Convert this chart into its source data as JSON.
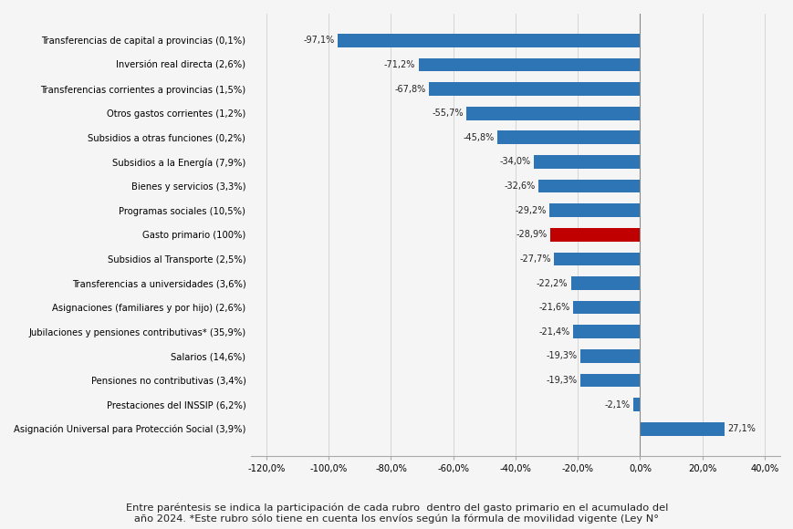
{
  "categories": [
    "Transferencias de capital a provincias (0,1%)",
    "Inversión real directa (2,6%)",
    "Transferencias corrientes a provincias (1,5%)",
    "Otros gastos corrientes (1,2%)",
    "Subsidios a otras funciones (0,2%)",
    "Subsidios a la Energía (7,9%)",
    "Bienes y servicios (3,3%)",
    "Programas sociales (10,5%)",
    "Gasto primario (100%)",
    "Subsidios al Transporte (2,5%)",
    "Transferencias a universidades (3,6%)",
    "Asignaciones (familiares y por hijo) (2,6%)",
    "Jubilaciones y pensiones contributivas* (35,9%)",
    "Salarios (14,6%)",
    "Pensiones no contributivas (3,4%)",
    "Prestaciones del INSSIP (6,2%)",
    "Asignación Universal para Protección Social (3,9%)"
  ],
  "values": [
    -97.1,
    -71.2,
    -67.8,
    -55.7,
    -45.8,
    -34.0,
    -32.6,
    -29.2,
    -28.9,
    -27.7,
    -22.2,
    -21.6,
    -21.4,
    -19.3,
    -19.3,
    -2.1,
    27.1
  ],
  "bar_colors": [
    "#2e75b6",
    "#2e75b6",
    "#2e75b6",
    "#2e75b6",
    "#2e75b6",
    "#2e75b6",
    "#2e75b6",
    "#2e75b6",
    "#c00000",
    "#2e75b6",
    "#2e75b6",
    "#2e75b6",
    "#2e75b6",
    "#2e75b6",
    "#2e75b6",
    "#2e75b6",
    "#2e75b6"
  ],
  "xlim": [
    -125,
    45
  ],
  "xticks": [
    -120,
    -100,
    -80,
    -60,
    -40,
    -20,
    0,
    20,
    40
  ],
  "xtick_labels": [
    "-120,0%",
    "-100,0%",
    "-80,0%",
    "-60,0%",
    "-40,0%",
    "-20,0%",
    "0,0%",
    "20,0%",
    "40,0%"
  ],
  "footnote_line1": "Entre paréntesis se indica la participación de cada rubro  dentro del gasto primario en el acumulado del",
  "footnote_line2": "año 2024. *Este rubro sólo tiene en cuenta los envíos según la fórmula de movilidad vigente (Ley N°",
  "bg_color": "#f5f5f5",
  "bar_height": 0.55,
  "value_fontsize": 7.0,
  "label_fontsize": 7.2
}
